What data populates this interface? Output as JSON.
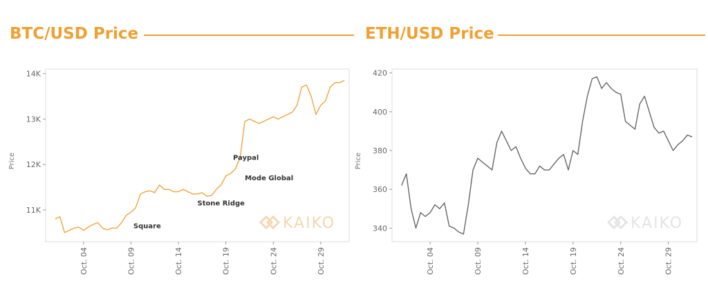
{
  "headers": {
    "btc_title": "BTC/USD Price",
    "eth_title": "ETH/USD Price"
  },
  "colors": {
    "accent": "#f0a030",
    "btc_line": "#efa43a",
    "eth_line": "#666666",
    "frame": "#dddddd",
    "watermark": "#f6d7b0",
    "watermark_gray": "#e4e4e4"
  },
  "watermark": {
    "text": "KAIKO",
    "icon": "kaiko-logo-icon"
  },
  "chart_data": [
    {
      "type": "line",
      "title": "BTC/USD Price",
      "xlabel": "",
      "ylabel": "Price",
      "xlim": [
        "2020-09-30",
        "2020-11-01"
      ],
      "ylim": [
        10300,
        14100
      ],
      "yticks": [
        11000,
        12000,
        13000,
        14000
      ],
      "ytick_labels": [
        "11K",
        "12K",
        "13K",
        "14K"
      ],
      "xticks": [
        "2020-10-04",
        "2020-10-09",
        "2020-10-14",
        "2020-10-19",
        "2020-10-24",
        "2020-10-29"
      ],
      "xtick_labels": [
        "Oct. 04",
        "Oct. 09",
        "Oct. 14",
        "Oct. 19",
        "Oct. 24",
        "Oct. 29"
      ],
      "grid": false,
      "series": [
        {
          "x": [
            "2020-10-01",
            "2020-10-01T12:00",
            "2020-10-02",
            "2020-10-02T12:00",
            "2020-10-03",
            "2020-10-03T12:00",
            "2020-10-04",
            "2020-10-04T12:00",
            "2020-10-05",
            "2020-10-05T12:00",
            "2020-10-06",
            "2020-10-06T12:00",
            "2020-10-07",
            "2020-10-07T12:00",
            "2020-10-08",
            "2020-10-08T12:00",
            "2020-10-09",
            "2020-10-09T12:00",
            "2020-10-10",
            "2020-10-10T12:00",
            "2020-10-11",
            "2020-10-11T12:00",
            "2020-10-12",
            "2020-10-12T12:00",
            "2020-10-13",
            "2020-10-13T12:00",
            "2020-10-14",
            "2020-10-14T12:00",
            "2020-10-15",
            "2020-10-15T12:00",
            "2020-10-16",
            "2020-10-16T12:00",
            "2020-10-17",
            "2020-10-17T12:00",
            "2020-10-18",
            "2020-10-18T12:00",
            "2020-10-19",
            "2020-10-19T12:00",
            "2020-10-20",
            "2020-10-20T12:00",
            "2020-10-21",
            "2020-10-21T12:00",
            "2020-10-22",
            "2020-10-22T12:00",
            "2020-10-23",
            "2020-10-23T12:00",
            "2020-10-24",
            "2020-10-24T12:00",
            "2020-10-25",
            "2020-10-25T12:00",
            "2020-10-26",
            "2020-10-26T12:00",
            "2020-10-27",
            "2020-10-27T12:00",
            "2020-10-28",
            "2020-10-28T12:00",
            "2020-10-29",
            "2020-10-29T12:00",
            "2020-10-30",
            "2020-10-30T12:00",
            "2020-10-31",
            "2020-10-31T12:00"
          ],
          "values": [
            10800,
            10850,
            10500,
            10550,
            10600,
            10620,
            10550,
            10620,
            10680,
            10720,
            10600,
            10560,
            10600,
            10600,
            10720,
            10880,
            10950,
            11050,
            11350,
            11400,
            11420,
            11380,
            11550,
            11450,
            11450,
            11400,
            11400,
            11450,
            11400,
            11350,
            11350,
            11380,
            11300,
            11320,
            11450,
            11550,
            11750,
            11800,
            11900,
            12150,
            12950,
            13000,
            12950,
            12900,
            12950,
            13000,
            13050,
            13000,
            13050,
            13100,
            13150,
            13300,
            13700,
            13750,
            13500,
            13100,
            13300,
            13400,
            13700,
            13800,
            13800,
            13850
          ]
        }
      ],
      "annotations": [
        {
          "text": "Paypal",
          "x": "2020-10-19T18:00",
          "y": 12100
        },
        {
          "text": "Mode Global",
          "x": "2020-10-21",
          "y": 11650
        },
        {
          "text": "Stone Ridge",
          "x": "2020-10-16",
          "y": 11100
        },
        {
          "text": "Square",
          "x": "2020-10-09T06:00",
          "y": 10600
        }
      ]
    },
    {
      "type": "line",
      "title": "ETH/USD Price",
      "xlabel": "",
      "ylabel": "Price",
      "xlim": [
        "2020-09-30",
        "2020-11-01"
      ],
      "ylim": [
        333,
        422
      ],
      "yticks": [
        340,
        360,
        380,
        400,
        420
      ],
      "ytick_labels": [
        "340",
        "360",
        "380",
        "400",
        "420"
      ],
      "xticks": [
        "2020-10-04",
        "2020-10-09",
        "2020-10-14",
        "2020-10-19",
        "2020-10-24",
        "2020-10-29"
      ],
      "xtick_labels": [
        "Oct. 04",
        "Oct. 09",
        "Oct. 14",
        "Oct. 19",
        "Oct. 24",
        "Oct. 29"
      ],
      "grid": false,
      "series": [
        {
          "x": [
            "2020-10-01",
            "2020-10-01T12:00",
            "2020-10-02",
            "2020-10-02T12:00",
            "2020-10-03",
            "2020-10-03T12:00",
            "2020-10-04",
            "2020-10-04T12:00",
            "2020-10-05",
            "2020-10-05T12:00",
            "2020-10-06",
            "2020-10-06T12:00",
            "2020-10-07",
            "2020-10-07T12:00",
            "2020-10-08",
            "2020-10-08T12:00",
            "2020-10-09",
            "2020-10-09T12:00",
            "2020-10-10",
            "2020-10-10T12:00",
            "2020-10-11",
            "2020-10-11T12:00",
            "2020-10-12",
            "2020-10-12T12:00",
            "2020-10-13",
            "2020-10-13T12:00",
            "2020-10-14",
            "2020-10-14T12:00",
            "2020-10-15",
            "2020-10-15T12:00",
            "2020-10-16",
            "2020-10-16T12:00",
            "2020-10-17",
            "2020-10-17T12:00",
            "2020-10-18",
            "2020-10-18T12:00",
            "2020-10-19",
            "2020-10-19T12:00",
            "2020-10-20",
            "2020-10-20T12:00",
            "2020-10-21",
            "2020-10-21T12:00",
            "2020-10-22",
            "2020-10-22T12:00",
            "2020-10-23",
            "2020-10-23T12:00",
            "2020-10-24",
            "2020-10-24T12:00",
            "2020-10-25",
            "2020-10-25T12:00",
            "2020-10-26",
            "2020-10-26T12:00",
            "2020-10-27",
            "2020-10-27T12:00",
            "2020-10-28",
            "2020-10-28T12:00",
            "2020-10-29",
            "2020-10-29T12:00",
            "2020-10-30",
            "2020-10-30T12:00",
            "2020-10-31",
            "2020-10-31T12:00"
          ],
          "values": [
            362,
            368,
            350,
            340,
            348,
            346,
            348,
            352,
            350,
            353,
            341,
            340,
            338,
            337,
            352,
            370,
            376,
            374,
            372,
            370,
            384,
            390,
            385,
            380,
            382,
            376,
            371,
            368,
            368,
            372,
            370,
            370,
            373,
            376,
            378,
            370,
            380,
            378,
            395,
            408,
            417,
            418,
            412,
            415,
            412,
            410,
            409,
            395,
            393,
            391,
            404,
            408,
            400,
            392,
            389,
            390,
            385,
            380,
            383,
            385,
            388,
            387
          ]
        }
      ]
    }
  ]
}
